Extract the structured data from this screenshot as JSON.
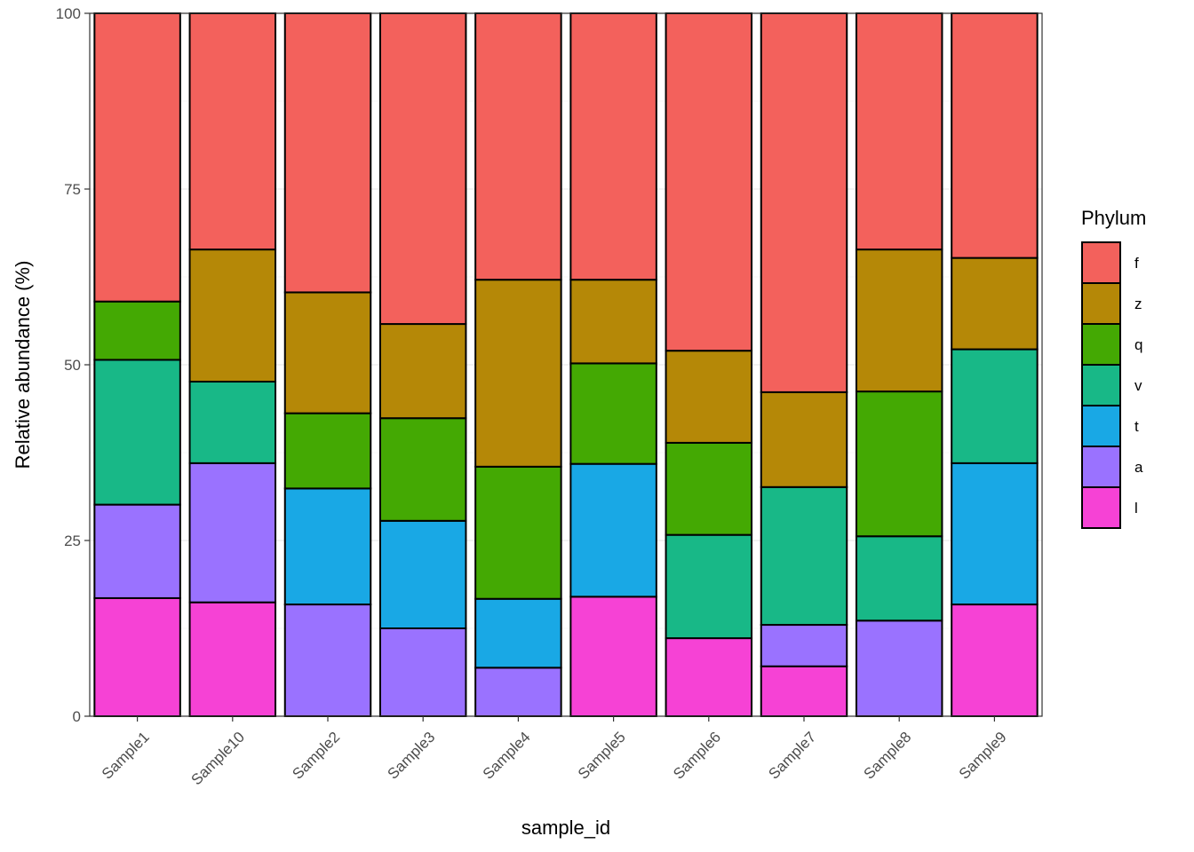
{
  "chart_data": {
    "type": "bar",
    "stacked": true,
    "xlabel": "sample_id",
    "ylabel": "Relative abundance (%)",
    "ylim": [
      0,
      100
    ],
    "yticks": [
      0,
      25,
      50,
      75,
      100
    ],
    "grid": true,
    "legend_title": "Phylum",
    "legend_position": "right",
    "categories": [
      "Sample1",
      "Sample10",
      "Sample2",
      "Sample3",
      "Sample4",
      "Sample5",
      "Sample6",
      "Sample7",
      "Sample8",
      "Sample9"
    ],
    "series": [
      {
        "name": "l",
        "color": "#F642D5",
        "values": [
          16.8,
          16.2,
          0,
          0,
          0,
          17.0,
          11.1,
          7.1,
          0,
          15.9
        ]
      },
      {
        "name": "a",
        "color": "#9A72FF",
        "values": [
          13.3,
          19.8,
          15.9,
          12.5,
          6.9,
          0,
          0,
          5.9,
          13.6,
          0
        ]
      },
      {
        "name": "t",
        "color": "#19A8E5",
        "values": [
          0,
          0,
          16.5,
          15.3,
          9.8,
          18.9,
          0,
          0,
          0,
          20.1
        ]
      },
      {
        "name": "v",
        "color": "#18B887",
        "values": [
          20.6,
          11.6,
          0,
          0,
          0,
          0,
          14.7,
          19.6,
          12.0,
          16.2
        ]
      },
      {
        "name": "q",
        "color": "#44A903",
        "values": [
          8.3,
          0,
          10.7,
          14.6,
          18.8,
          14.3,
          13.1,
          0,
          20.6,
          0
        ]
      },
      {
        "name": "z",
        "color": "#B58807",
        "values": [
          0,
          18.8,
          17.2,
          13.4,
          26.6,
          11.9,
          13.1,
          13.5,
          20.2,
          13.0
        ]
      },
      {
        "name": "f",
        "color": "#F3615C",
        "values": [
          41.0,
          33.6,
          39.7,
          44.2,
          37.9,
          37.9,
          48.0,
          53.9,
          33.6,
          34.8
        ]
      }
    ],
    "legend_order": [
      "f",
      "z",
      "q",
      "v",
      "t",
      "a",
      "l"
    ]
  }
}
